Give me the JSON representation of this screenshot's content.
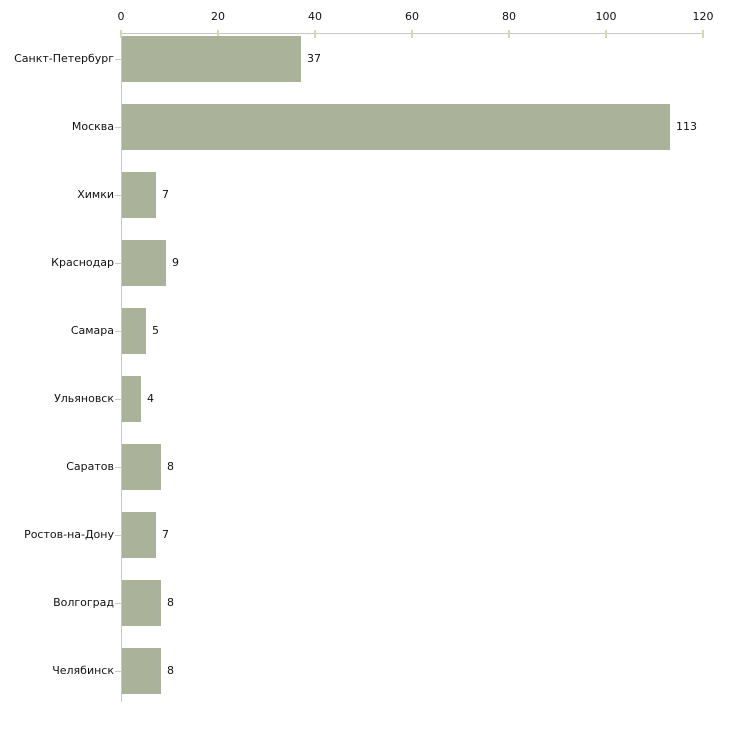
{
  "chart_data": {
    "type": "bar",
    "orientation": "horizontal",
    "title": "",
    "xlabel": "",
    "ylabel": "",
    "categories": [
      "Санкт-Петербург",
      "Москва",
      "Химки",
      "Краснодар",
      "Самара",
      "Ульяновск",
      "Саратов",
      "Ростов-на-Дону",
      "Волгоград",
      "Челябинск"
    ],
    "values": [
      37,
      113,
      7,
      9,
      5,
      4,
      8,
      7,
      8,
      8
    ],
    "value_labels": [
      "37",
      "113",
      "7",
      "9",
      "5",
      "4",
      "8",
      "7",
      "8",
      "8"
    ],
    "xlim": [
      0,
      120
    ],
    "x_ticks": [
      0,
      20,
      40,
      60,
      80,
      100,
      120
    ],
    "x_tick_labels": [
      "0",
      "20",
      "40",
      "60",
      "80",
      "100",
      "120"
    ],
    "axis_position": "top",
    "grid": false,
    "legend": false,
    "colors": {
      "bar_fill": "#abb29a",
      "axis_line": "#c6c6c6",
      "x_tick_mark": "#d6d9ad",
      "y_tick_mark": "#c9c9c9",
      "text": "#111111",
      "background": "#ffffff"
    }
  }
}
